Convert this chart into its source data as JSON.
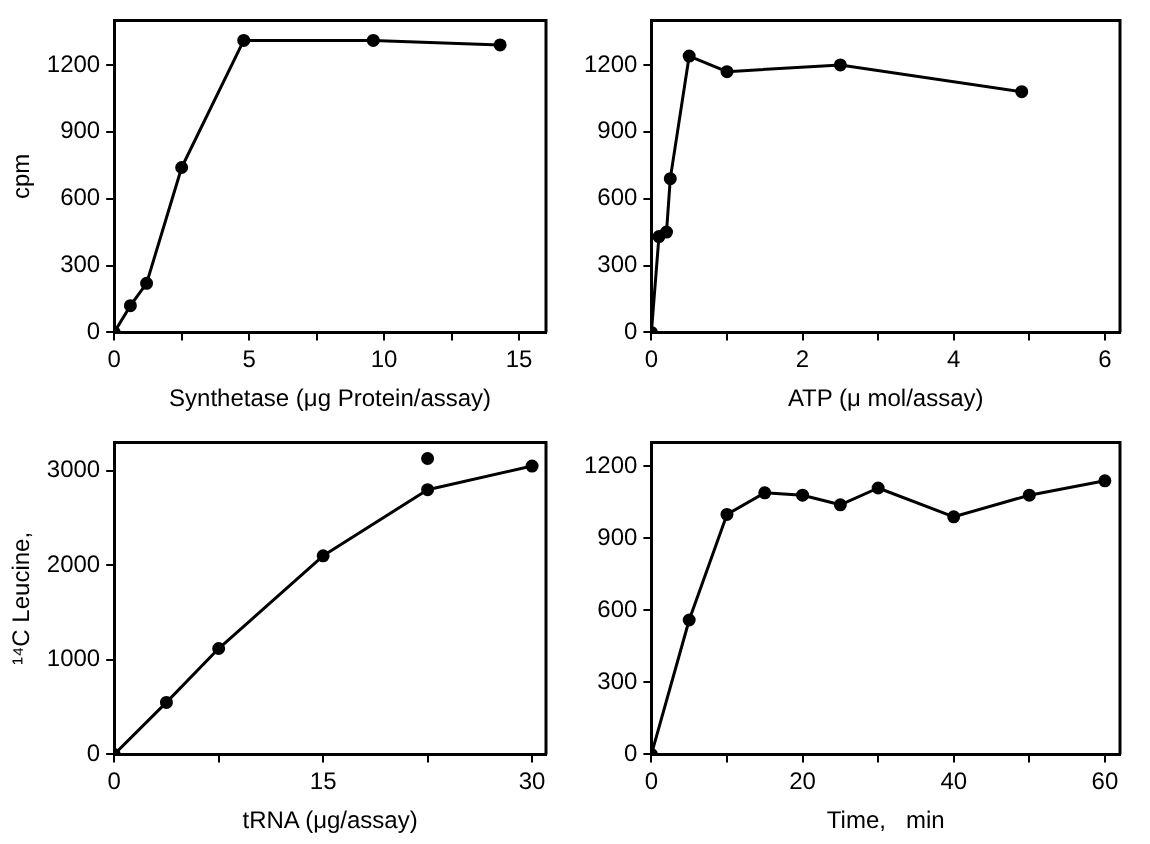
{
  "chart_data": [
    {
      "type": "line",
      "xlabel": "Synthetase (μg Protein/assay)",
      "ylabel": "cpm",
      "xlim": [
        0,
        16
      ],
      "ylim": [
        0,
        1400
      ],
      "xticks": [
        0,
        {
          "value": 2.5,
          "label": null
        },
        5,
        {
          "value": 7.5,
          "label": null
        },
        10,
        {
          "value": 12.5,
          "label": null
        },
        15
      ],
      "yticks": [
        0,
        300,
        600,
        900,
        1200
      ],
      "marker": "circle",
      "line_style": "solid",
      "grid": false,
      "legend": false,
      "series": [
        {
          "color": "#000000",
          "x": [
            0,
            0.6,
            1.2,
            2.5,
            4.8,
            9.6,
            14.3
          ],
          "values": [
            0,
            120,
            220,
            740,
            1310,
            1310,
            1290
          ]
        }
      ]
    },
    {
      "type": "line",
      "xlabel": "ATP (μ mol/assay)",
      "xlim": [
        0,
        6.2
      ],
      "ylim": [
        0,
        1400
      ],
      "xticks": [
        0,
        {
          "value": 1,
          "label": null
        },
        2,
        {
          "value": 3,
          "label": null
        },
        4,
        {
          "value": 5,
          "label": null
        },
        6
      ],
      "yticks": [
        0,
        300,
        600,
        900,
        1200
      ],
      "marker": "circle",
      "line_style": "solid",
      "grid": false,
      "legend": false,
      "series": [
        {
          "color": "#000000",
          "x": [
            0,
            0.1,
            0.2,
            0.25,
            0.5,
            1,
            2.5,
            4.9
          ],
          "values": [
            0,
            430,
            450,
            690,
            1240,
            1170,
            1200,
            1080
          ]
        }
      ]
    },
    {
      "type": "line",
      "xlabel": "tRNA (μg/assay)",
      "ylabel": "¹⁴C Leucine,",
      "xlim": [
        0,
        31
      ],
      "ylim": [
        0,
        3300
      ],
      "xticks": [
        0,
        {
          "value": 7.5,
          "label": null
        },
        15,
        {
          "value": 22.5,
          "label": null
        },
        30
      ],
      "yticks": [
        0,
        1000,
        2000,
        3000
      ],
      "marker": "circle",
      "line_style": "solid",
      "grid": false,
      "legend": false,
      "series": [
        {
          "color": "#000000",
          "x": [
            0,
            3.75,
            7.5,
            15,
            22.5,
            30
          ],
          "values": [
            0,
            550,
            1120,
            2100,
            2800,
            3050
          ]
        },
        {
          "type": "scatter",
          "color": "#000000",
          "x": [
            22.5
          ],
          "values": [
            3130
          ]
        }
      ]
    },
    {
      "type": "line",
      "xlabel": "Time,   min",
      "xlim": [
        0,
        62
      ],
      "ylim": [
        0,
        1300
      ],
      "xticks": [
        0,
        {
          "value": 10,
          "label": null
        },
        20,
        {
          "value": 30,
          "label": null
        },
        40,
        {
          "value": 50,
          "label": null
        },
        60
      ],
      "yticks": [
        0,
        300,
        600,
        900,
        1200
      ],
      "marker": "circle",
      "line_style": "solid",
      "grid": false,
      "legend": false,
      "series": [
        {
          "color": "#000000",
          "x": [
            0,
            5,
            10,
            15,
            20,
            25,
            30,
            40,
            50,
            60
          ],
          "values": [
            0,
            560,
            1000,
            1090,
            1080,
            1040,
            1110,
            990,
            1080,
            1140
          ]
        }
      ]
    }
  ]
}
